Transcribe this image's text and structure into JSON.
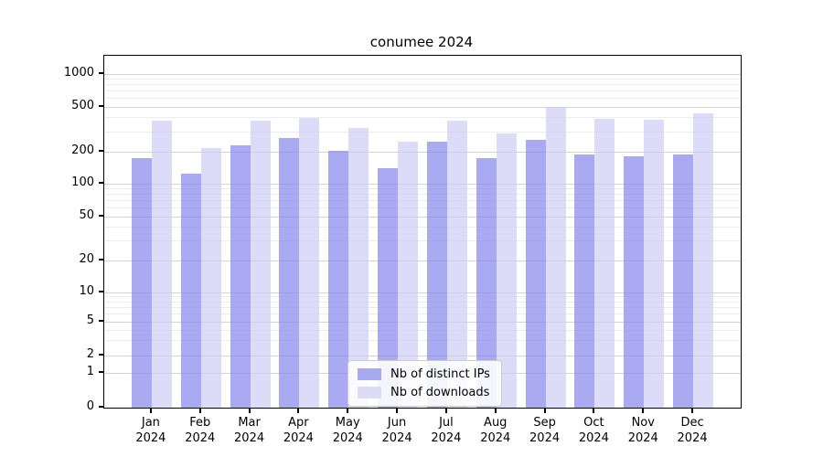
{
  "title": "conumee 2024",
  "colors": {
    "ips_bar": "rgba(134,134,236,0.7)",
    "downloads_bar": "rgba(205,205,245,0.7)",
    "ips_swatch": "#a9a9f2",
    "downloads_swatch": "#dcdcf7",
    "grid_major": "#d4d4d4",
    "grid_minor": "#ededed",
    "axis": "#000000"
  },
  "chart_data": {
    "type": "bar",
    "title": "conumee 2024",
    "xlabel": "",
    "ylabel": "",
    "x": [
      "Jan\n2024",
      "Feb\n2024",
      "Mar\n2024",
      "Apr\n2024",
      "May\n2024",
      "Jun\n2024",
      "Jul\n2024",
      "Aug\n2024",
      "Sep\n2024",
      "Oct\n2024",
      "Nov\n2024",
      "Dec\n2024"
    ],
    "series": [
      {
        "name": "Nb of distinct IPs",
        "values": [
          175,
          125,
          230,
          265,
          205,
          140,
          245,
          175,
          255,
          190,
          180,
          190
        ]
      },
      {
        "name": "Nb of downloads",
        "values": [
          380,
          215,
          380,
          400,
          325,
          245,
          380,
          290,
          500,
          390,
          385,
          435
        ]
      }
    ],
    "yticks": [
      0,
      1,
      2,
      5,
      10,
      20,
      50,
      100,
      200,
      500,
      1000
    ],
    "yaxis_scale": "log-like with compressed region below 10 and a 0 baseline",
    "ylim": [
      0,
      1468
    ],
    "grid": true,
    "legend_position": "lower center inside plot"
  },
  "legend": {
    "items": [
      {
        "label": "Nb of distinct IPs"
      },
      {
        "label": "Nb of downloads"
      }
    ]
  }
}
